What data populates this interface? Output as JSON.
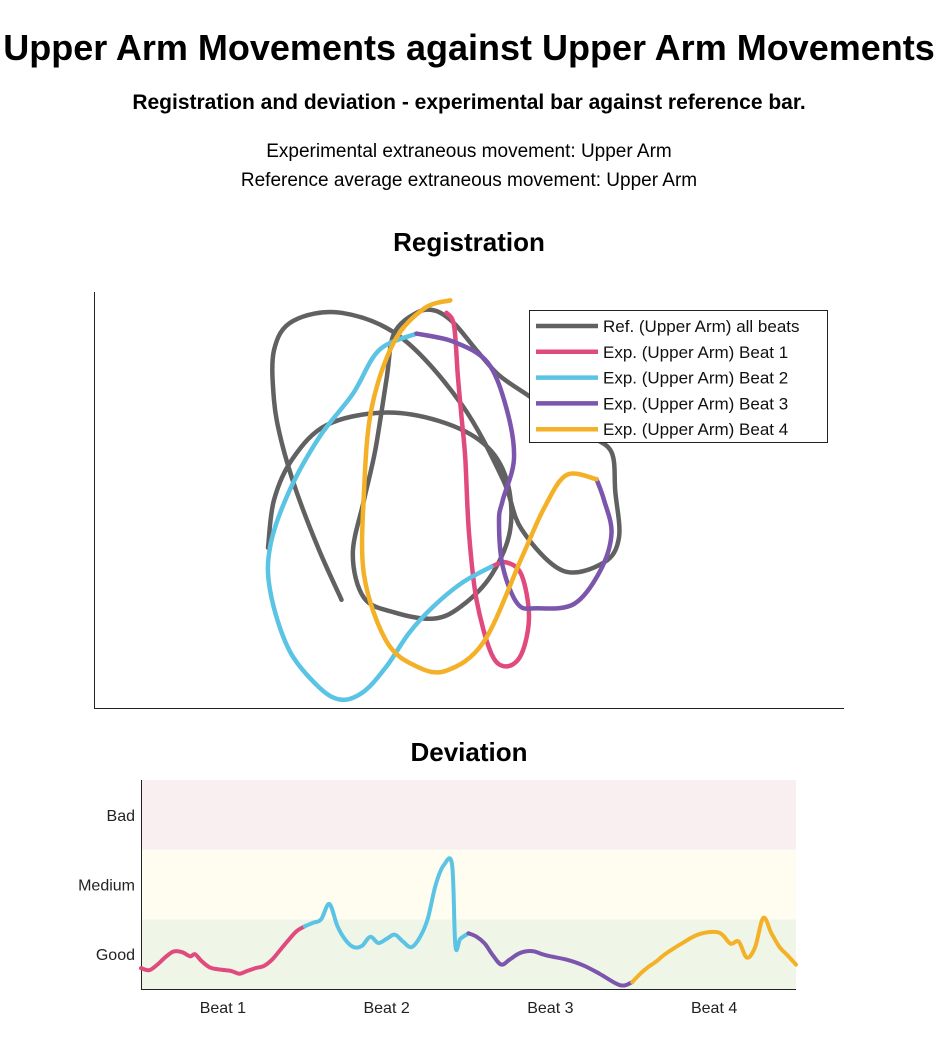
{
  "title": "Upper Arm Movements against Upper Arm Movements",
  "subtitle": "Registration and deviation - experimental bar against reference bar.",
  "info": {
    "experimental": "Experimental extraneous movement: Upper Arm",
    "reference": "Reference average extraneous movement: Upper Arm"
  },
  "colors": {
    "reference": "#616161",
    "beat1": "#e04a7e",
    "beat2": "#5bc3e3",
    "beat3": "#7b56ac",
    "beat4": "#f4b128",
    "band_bad": "#f9eff1",
    "band_medium": "#fefdf0",
    "band_good": "#eff6e8"
  },
  "chart_data": [
    {
      "type": "line",
      "title": "Registration",
      "axes": "hidden ticks",
      "legend": "top-right",
      "series": [
        {
          "name": "Ref. (Upper Arm) all beats",
          "color": "#616161",
          "points": [
            [
              0.232,
              0.385
            ],
            [
              0.24,
              0.5
            ],
            [
              0.265,
              0.6
            ],
            [
              0.31,
              0.68
            ],
            [
              0.385,
              0.71
            ],
            [
              0.46,
              0.69
            ],
            [
              0.52,
              0.635
            ],
            [
              0.55,
              0.55
            ],
            [
              0.555,
              0.43
            ],
            [
              0.53,
              0.32
            ],
            [
              0.49,
              0.245
            ],
            [
              0.453,
              0.215
            ],
            [
              0.4,
              0.23
            ],
            [
              0.36,
              0.265
            ],
            [
              0.345,
              0.37
            ],
            [
              0.36,
              0.5
            ],
            [
              0.375,
              0.62
            ],
            [
              0.39,
              0.79
            ],
            [
              0.4,
              0.9
            ],
            [
              0.43,
              0.95
            ],
            [
              0.455,
              0.955
            ],
            [
              0.48,
              0.925
            ],
            [
              0.51,
              0.86
            ],
            [
              0.54,
              0.8
            ],
            [
              0.58,
              0.75
            ],
            [
              0.62,
              0.7
            ],
            [
              0.66,
              0.655
            ],
            [
              0.69,
              0.615
            ],
            [
              0.695,
              0.52
            ],
            [
              0.7,
              0.41
            ],
            [
              0.68,
              0.35
            ],
            [
              0.625,
              0.33
            ],
            [
              0.57,
              0.43
            ],
            [
              0.545,
              0.55
            ],
            [
              0.49,
              0.73
            ],
            [
              0.41,
              0.89
            ],
            [
              0.33,
              0.95
            ],
            [
              0.265,
              0.93
            ],
            [
              0.24,
              0.86
            ],
            [
              0.24,
              0.74
            ],
            [
              0.25,
              0.64
            ],
            [
              0.27,
              0.52
            ],
            [
              0.3,
              0.38
            ],
            [
              0.33,
              0.26
            ]
          ]
        },
        {
          "name": "Exp. (Upper Arm) Beat 1",
          "color": "#e04a7e",
          "points": [
            [
              0.47,
              0.95
            ],
            [
              0.48,
              0.92
            ],
            [
              0.485,
              0.8
            ],
            [
              0.49,
              0.7
            ],
            [
              0.495,
              0.6
            ],
            [
              0.5,
              0.42
            ],
            [
              0.51,
              0.26
            ],
            [
              0.53,
              0.13
            ],
            [
              0.55,
              0.1
            ],
            [
              0.57,
              0.13
            ],
            [
              0.58,
              0.22
            ],
            [
              0.57,
              0.32
            ],
            [
              0.55,
              0.35
            ],
            [
              0.53,
              0.34
            ]
          ]
        },
        {
          "name": "Exp. (Upper Arm) Beat 2",
          "color": "#5bc3e3",
          "points": [
            [
              0.53,
              0.34
            ],
            [
              0.49,
              0.3
            ],
            [
              0.45,
              0.24
            ],
            [
              0.42,
              0.18
            ],
            [
              0.39,
              0.1
            ],
            [
              0.36,
              0.04
            ],
            [
              0.33,
              0.02
            ],
            [
              0.3,
              0.05
            ],
            [
              0.26,
              0.14
            ],
            [
              0.235,
              0.28
            ],
            [
              0.235,
              0.39
            ],
            [
              0.26,
              0.52
            ],
            [
              0.3,
              0.65
            ],
            [
              0.345,
              0.755
            ],
            [
              0.38,
              0.86
            ],
            [
              0.43,
              0.9
            ]
          ]
        },
        {
          "name": "Exp. (Upper Arm) Beat 3",
          "color": "#7b56ac",
          "points": [
            [
              0.43,
              0.9
            ],
            [
              0.48,
              0.88
            ],
            [
              0.525,
              0.83
            ],
            [
              0.55,
              0.72
            ],
            [
              0.56,
              0.6
            ],
            [
              0.545,
              0.5
            ],
            [
              0.54,
              0.45
            ],
            [
              0.545,
              0.34
            ],
            [
              0.565,
              0.25
            ],
            [
              0.59,
              0.24
            ],
            [
              0.64,
              0.25
            ],
            [
              0.675,
              0.33
            ],
            [
              0.69,
              0.42
            ],
            [
              0.68,
              0.5
            ],
            [
              0.67,
              0.55
            ]
          ]
        },
        {
          "name": "Exp. (Upper Arm) Beat 4",
          "color": "#f4b128",
          "points": [
            [
              0.67,
              0.55
            ],
            [
              0.63,
              0.56
            ],
            [
              0.6,
              0.48
            ],
            [
              0.57,
              0.36
            ],
            [
              0.52,
              0.16
            ],
            [
              0.47,
              0.09
            ],
            [
              0.43,
              0.1
            ],
            [
              0.39,
              0.16
            ],
            [
              0.36,
              0.32
            ],
            [
              0.36,
              0.52
            ],
            [
              0.37,
              0.72
            ],
            [
              0.4,
              0.88
            ],
            [
              0.44,
              0.96
            ],
            [
              0.475,
              0.98
            ]
          ]
        }
      ]
    },
    {
      "type": "line",
      "title": "Deviation",
      "categories": [
        "Beat 1",
        "Beat 2",
        "Beat 3",
        "Beat 4"
      ],
      "y_levels": [
        "Good",
        "Medium",
        "Bad"
      ],
      "ylim": [
        0,
        3
      ],
      "series": [
        {
          "name": "Beat 1",
          "color": "#e04a7e",
          "x": [
            0,
            0.05,
            0.1,
            0.15,
            0.2,
            0.25,
            0.3,
            0.33,
            0.37,
            0.42,
            0.48,
            0.55,
            0.6,
            0.65,
            0.7,
            0.75,
            0.8,
            0.85,
            0.9,
            0.95,
            1.0
          ],
          "y": [
            0.3,
            0.27,
            0.35,
            0.46,
            0.54,
            0.53,
            0.47,
            0.5,
            0.4,
            0.31,
            0.28,
            0.26,
            0.22,
            0.26,
            0.3,
            0.33,
            0.42,
            0.56,
            0.7,
            0.83,
            0.9
          ]
        },
        {
          "name": "Beat 2",
          "color": "#5bc3e3",
          "x": [
            1.0,
            1.05,
            1.1,
            1.15,
            1.2,
            1.25,
            1.3,
            1.35,
            1.4,
            1.45,
            1.5,
            1.55,
            1.6,
            1.65,
            1.7,
            1.75,
            1.8,
            1.85,
            1.9,
            1.92,
            1.95,
            2.0
          ],
          "y": [
            0.9,
            0.95,
            1.0,
            1.22,
            0.9,
            0.7,
            0.6,
            0.62,
            0.75,
            0.66,
            0.72,
            0.78,
            0.68,
            0.6,
            0.73,
            1.0,
            1.5,
            1.78,
            1.78,
            0.62,
            0.72,
            0.8
          ]
        },
        {
          "name": "Beat 3",
          "color": "#7b56ac",
          "x": [
            2.0,
            2.05,
            2.1,
            2.15,
            2.2,
            2.25,
            2.3,
            2.35,
            2.4,
            2.45,
            2.5,
            2.6,
            2.7,
            2.8,
            2.9,
            2.95,
            3.0
          ],
          "y": [
            0.8,
            0.75,
            0.65,
            0.48,
            0.35,
            0.42,
            0.5,
            0.54,
            0.54,
            0.5,
            0.47,
            0.42,
            0.34,
            0.22,
            0.08,
            0.05,
            0.1
          ]
        },
        {
          "name": "Beat 4",
          "color": "#f4b128",
          "x": [
            3.0,
            3.05,
            3.1,
            3.15,
            3.2,
            3.3,
            3.4,
            3.5,
            3.55,
            3.6,
            3.65,
            3.7,
            3.75,
            3.8,
            3.85,
            3.9,
            3.95,
            4.0
          ],
          "y": [
            0.1,
            0.22,
            0.32,
            0.4,
            0.5,
            0.65,
            0.78,
            0.82,
            0.78,
            0.65,
            0.68,
            0.45,
            0.6,
            1.02,
            0.8,
            0.6,
            0.48,
            0.35
          ]
        }
      ]
    }
  ]
}
